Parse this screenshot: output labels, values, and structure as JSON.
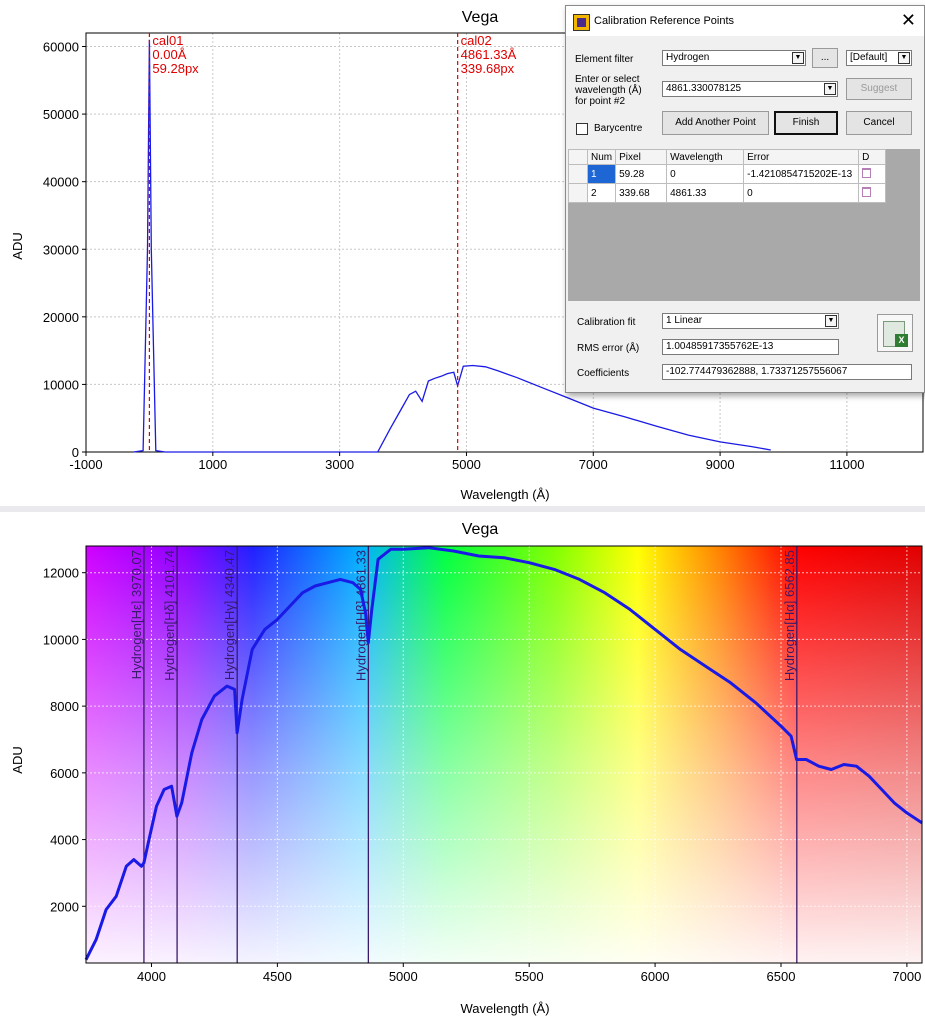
{
  "top_chart": {
    "title": "Vega",
    "xlabel": "Wavelength (Å)",
    "ylabel": "ADU",
    "x_ticks": [
      "-1000",
      "1000",
      "3000",
      "5000",
      "7000",
      "9000",
      "11000"
    ],
    "y_ticks": [
      "0",
      "10000",
      "20000",
      "30000",
      "40000",
      "50000",
      "60000"
    ],
    "markers": [
      {
        "name": "cal01",
        "wavelength": "0.00Å",
        "pixel": "59.28px"
      },
      {
        "name": "cal02",
        "wavelength": "4861.33Å",
        "pixel": "339.68px"
      }
    ]
  },
  "bottom_chart": {
    "title": "Vega",
    "xlabel": "Wavelength (Å)",
    "ylabel": "ADU",
    "x_ticks": [
      "4000",
      "4500",
      "5000",
      "5500",
      "6000",
      "6500",
      "7000"
    ],
    "y_ticks": [
      "2000",
      "4000",
      "6000",
      "8000",
      "10000",
      "12000"
    ],
    "lines": [
      {
        "label": "Hydrogen[Hε] 3970.07",
        "x": 3970.07
      },
      {
        "label": "Hydrogen[Hδ] 4101.74",
        "x": 4101.74
      },
      {
        "label": "Hydrogen[Hγ] 4340.47",
        "x": 4340.47
      },
      {
        "label": "Hydrogen[Hβ] 4861.33",
        "x": 4861.33
      },
      {
        "label": "Hydrogen[Hα] 6562.85",
        "x": 6562.85
      }
    ]
  },
  "chart_data": [
    {
      "type": "line",
      "title": "Vega",
      "xlabel": "Wavelength (Å)",
      "ylabel": "ADU",
      "xlim": [
        -1000,
        12200
      ],
      "ylim": [
        0,
        62000
      ],
      "series": [
        {
          "values_x": [
            -250,
            -100,
            -30,
            0,
            30,
            100,
            250,
            3600,
            3800,
            3950,
            4000,
            4100,
            4200,
            4300,
            4400,
            4500,
            4600,
            4700,
            4800,
            4861,
            4950,
            5100,
            5300,
            5500,
            5800,
            6200,
            6600,
            7000,
            7500,
            8000,
            8500,
            9000,
            9500,
            9800
          ],
          "values_y": [
            0,
            200,
            30000,
            61000,
            30000,
            200,
            0,
            0,
            3500,
            6000,
            6800,
            8500,
            9000,
            7500,
            10500,
            10900,
            11200,
            11600,
            11800,
            9800,
            12700,
            12800,
            12600,
            12000,
            11000,
            9500,
            8000,
            6500,
            5200,
            3800,
            2500,
            1500,
            800,
            300
          ]
        }
      ],
      "annotations": [
        "cal01 0.00Å 59.28px",
        "cal02 4861.33Å 339.68px"
      ]
    },
    {
      "type": "line",
      "title": "Vega",
      "xlabel": "Wavelength (Å)",
      "ylabel": "ADU",
      "xlim": [
        3740,
        7060
      ],
      "ylim": [
        300,
        12800
      ],
      "series": [
        {
          "values_x": [
            3740,
            3780,
            3820,
            3860,
            3900,
            3930,
            3960,
            3970,
            3990,
            4020,
            4050,
            4080,
            4101,
            4120,
            4160,
            4200,
            4250,
            4300,
            4330,
            4340,
            4360,
            4400,
            4450,
            4500,
            4550,
            4600,
            4650,
            4700,
            4750,
            4800,
            4830,
            4850,
            4861,
            4875,
            4900,
            4950,
            5000,
            5100,
            5200,
            5300,
            5400,
            5500,
            5600,
            5700,
            5800,
            5900,
            6000,
            6100,
            6200,
            6300,
            6400,
            6500,
            6540,
            6562,
            6600,
            6650,
            6700,
            6750,
            6800,
            6850,
            6900,
            6950,
            7000,
            7060
          ],
          "values_y": [
            400,
            1000,
            1900,
            2300,
            3200,
            3400,
            3200,
            3300,
            4000,
            5000,
            5500,
            5600,
            4700,
            5100,
            6600,
            7600,
            8300,
            8600,
            8500,
            7200,
            8200,
            9700,
            10300,
            10600,
            11000,
            11400,
            11600,
            11700,
            11800,
            11700,
            11500,
            10800,
            9900,
            10900,
            12400,
            12700,
            12700,
            12750,
            12650,
            12500,
            12450,
            12300,
            12100,
            11800,
            11400,
            10900,
            10300,
            9700,
            9200,
            8700,
            8100,
            7400,
            7100,
            6400,
            6400,
            6200,
            6100,
            6250,
            6200,
            5900,
            5500,
            5100,
            4800,
            4500
          ]
        }
      ],
      "annotations": [
        "Hydrogen[Hε] 3970.07",
        "Hydrogen[Hδ] 4101.74",
        "Hydrogen[Hγ] 4340.47",
        "Hydrogen[Hβ] 4861.33",
        "Hydrogen[Hα] 6562.85"
      ]
    }
  ],
  "dialog": {
    "title": "Calibration Reference Points",
    "element_filter_label": "Element filter",
    "element_filter_value": "Hydrogen",
    "ellipsis_label": "...",
    "preset_value": "[Default]",
    "wavelength_label_1": "Enter or select",
    "wavelength_label_2": "wavelength (Å)",
    "wavelength_label_3": "for point #2",
    "wavelength_value": "4861.330078125",
    "suggest_label": "Suggest",
    "barycentre_label": "Barycentre",
    "add_point_label": "Add Another Point",
    "finish_label": "Finish",
    "cancel_label": "Cancel",
    "grid_headers": [
      "Num",
      "Pixel",
      "Wavelength",
      "Error",
      "D"
    ],
    "grid_rows": [
      {
        "num": "1",
        "pixel": "59.28",
        "wavelength": "0",
        "error": "-1.4210854715202E-13"
      },
      {
        "num": "2",
        "pixel": "339.68",
        "wavelength": "4861.33",
        "error": "0"
      }
    ],
    "calibration_fit_label": "Calibration fit",
    "calibration_fit_value": "1 Linear",
    "rms_label": "RMS error (Å)",
    "rms_value": "1.00485917355762E-13",
    "coefficients_label": "Coefficients",
    "coefficients_value": "-102.774479362888, 1.73371257556067"
  },
  "colors": {
    "series": "#1a1ae6",
    "marker": "#e00000",
    "spectral_line": "#3a1a6a",
    "selected": "#1e66d4"
  }
}
